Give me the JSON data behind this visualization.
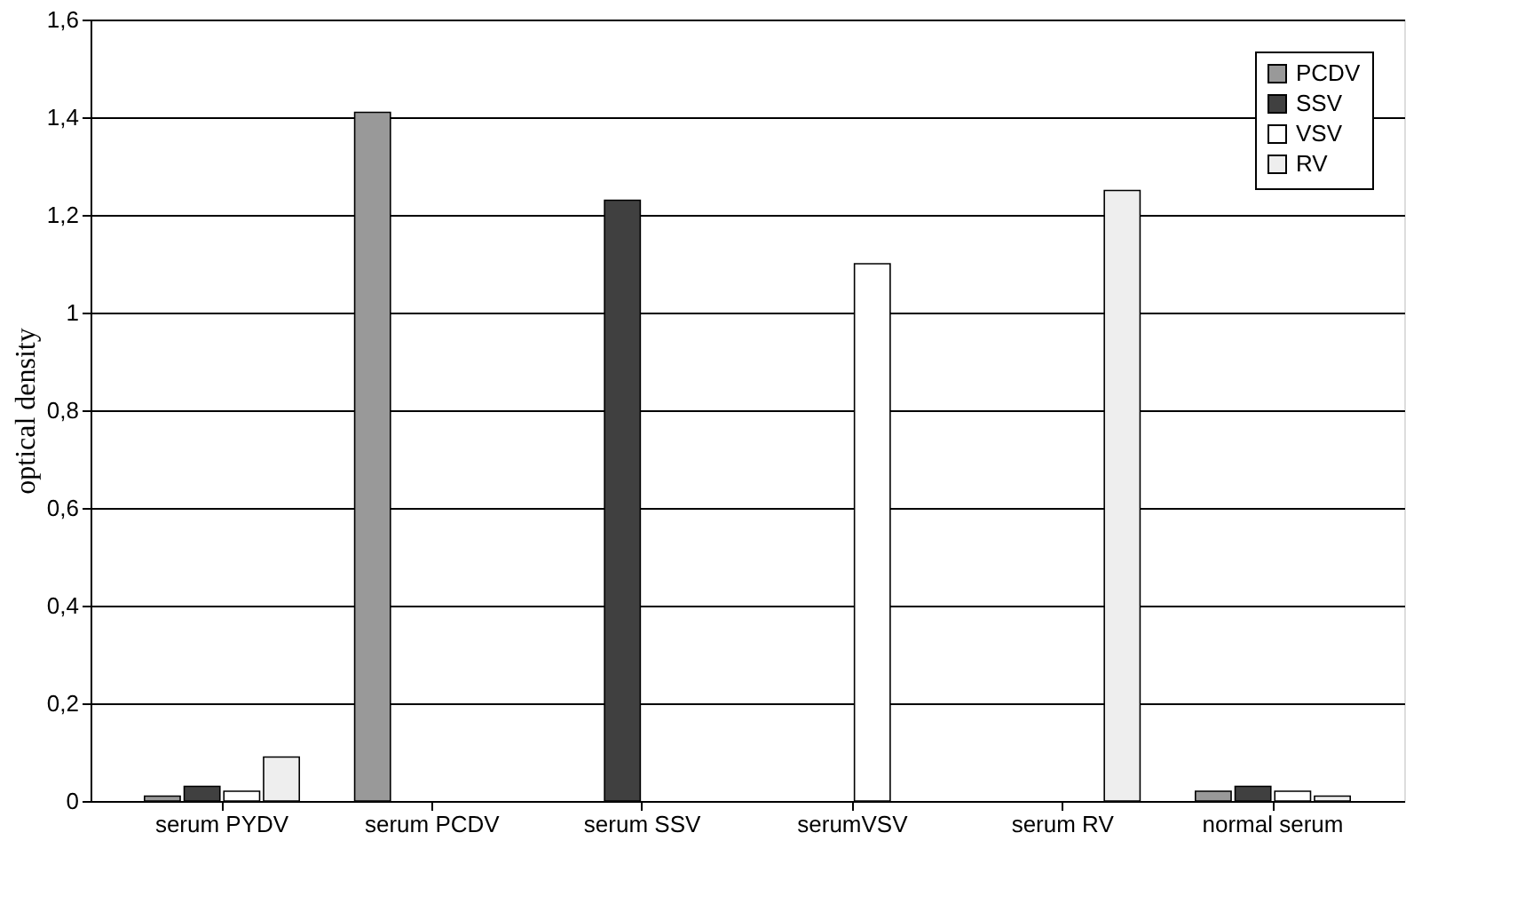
{
  "chart_data": {
    "type": "bar",
    "ylabel": "optical density",
    "categories": [
      "serum PYDV",
      "serum PCDV",
      "serum SSV",
      "serumVSV",
      "serum RV",
      "normal serum"
    ],
    "series": [
      {
        "name": "PCDV",
        "color": "#999999",
        "values": [
          0.01,
          1.41,
          null,
          null,
          null,
          0.02
        ]
      },
      {
        "name": "SSV",
        "color": "#404040",
        "values": [
          0.03,
          null,
          1.23,
          null,
          null,
          0.03
        ]
      },
      {
        "name": "VSV",
        "color": "#ffffff",
        "values": [
          0.02,
          null,
          null,
          1.1,
          null,
          0.02
        ]
      },
      {
        "name": "RV",
        "color": "#eeeeee",
        "values": [
          0.09,
          null,
          null,
          null,
          1.25,
          0.01
        ]
      }
    ],
    "ylim": [
      0,
      1.6
    ],
    "yticks": [
      0,
      {
        "value": 0.2,
        "label": "0,2"
      },
      {
        "value": 0.4,
        "label": "0,4"
      },
      {
        "value": 0.6,
        "label": "0,6"
      },
      {
        "value": 0.8,
        "label": "0,8"
      },
      1,
      {
        "value": 1.2,
        "label": "1,2"
      },
      {
        "value": 1.4,
        "label": "1,4"
      },
      {
        "value": 1.6,
        "label": "1,6"
      }
    ],
    "grid": "y",
    "legend": "top right"
  }
}
